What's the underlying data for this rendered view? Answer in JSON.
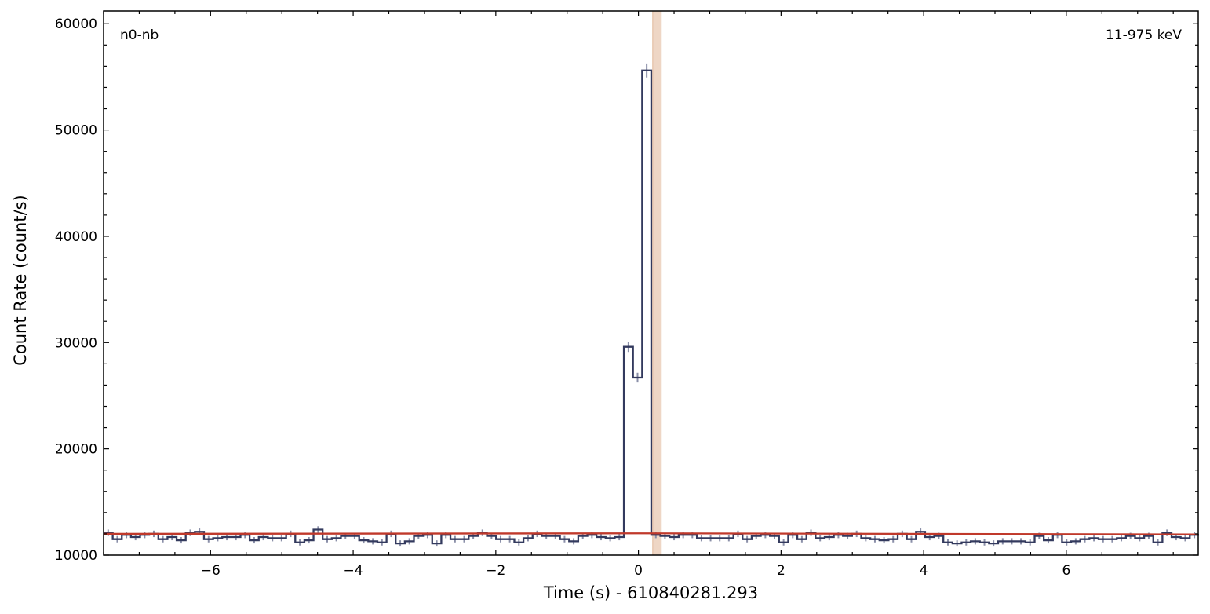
{
  "chart_data": {
    "type": "line",
    "detector_label": "n0-nb",
    "energy_label": "11-975 keV",
    "xlabel": "Time (s) - 610840281.293",
    "ylabel": "Count Rate (count/s)",
    "xlim": [
      -7.5,
      7.85
    ],
    "ylim": [
      10000,
      61200
    ],
    "x_ticks": [
      -6,
      -4,
      -2,
      0,
      2,
      4,
      6
    ],
    "x_tick_labels": [
      "−6",
      "−4",
      "−2",
      "0",
      "2",
      "4",
      "6"
    ],
    "y_ticks": [
      10000,
      20000,
      30000,
      40000,
      50000,
      60000
    ],
    "y_tick_labels": [
      "10000",
      "20000",
      "30000",
      "40000",
      "50000",
      "60000"
    ],
    "highlight_interval": [
      0.2,
      0.32
    ],
    "bin_width": 0.128,
    "bin_start": -7.5,
    "series": [
      {
        "type": "step",
        "color": "#333a5e",
        "values": [
          12100,
          11500,
          11900,
          11700,
          11900,
          12000,
          11500,
          11700,
          11400,
          12100,
          12200,
          11500,
          11600,
          11700,
          11700,
          11900,
          11400,
          11700,
          11600,
          11600,
          12000,
          11200,
          11400,
          12400,
          11500,
          11600,
          11800,
          11800,
          11400,
          11300,
          11200,
          12000,
          11100,
          11300,
          11800,
          11900,
          11100,
          11900,
          11500,
          11500,
          11800,
          12100,
          11800,
          11500,
          11500,
          11200,
          11600,
          12000,
          11800,
          11800,
          11500,
          11300,
          11800,
          11900,
          11700,
          11600,
          11700,
          29600,
          26700,
          55600,
          11900,
          11800,
          11700,
          11900,
          11900,
          11600,
          11600,
          11600,
          11600,
          12000,
          11500,
          11800,
          11900,
          11800,
          11200,
          11900,
          11500,
          12100,
          11600,
          11700,
          11900,
          11800,
          12000,
          11600,
          11500,
          11400,
          11500,
          12000,
          11500,
          12200,
          11700,
          11800,
          11200,
          11100,
          11200,
          11300,
          11200,
          11100,
          11300,
          11300,
          11300,
          11200,
          11800,
          11400,
          11900,
          11200,
          11300,
          11500,
          11600,
          11500,
          11500,
          11600,
          11800,
          11600,
          11800,
          11200,
          12100,
          11700,
          11600,
          11900
        ]
      },
      {
        "type": "background",
        "color": "#c0392b",
        "x": [
          -7.5,
          0,
          7.85
        ],
        "values": [
          12000,
          12050,
          11950
        ]
      }
    ]
  }
}
